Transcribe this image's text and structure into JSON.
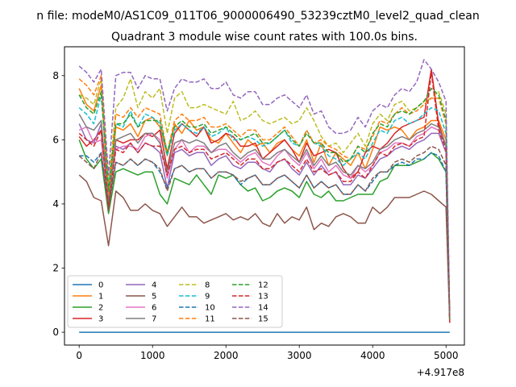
{
  "chart_data": {
    "type": "line",
    "suptitle": "n file: modeM0/AS1C09_011T06_9000006490_53239cztM0_level2_quad_clean",
    "title": "Quadrant 3 module wise count rates with 100.0s bins.",
    "xlabel": "",
    "ylabel": "",
    "x_offset_label": "+4.917e8",
    "xlim": [
      -200,
      5250
    ],
    "ylim": [
      -0.4,
      8.9
    ],
    "xticks": [
      0,
      1000,
      2000,
      3000,
      4000,
      5000
    ],
    "yticks": [
      0,
      2,
      4,
      6,
      8
    ],
    "legend_position": "lower-left",
    "legend_columns": 4,
    "x": [
      0,
      100,
      200,
      300,
      400,
      500,
      600,
      700,
      800,
      900,
      1000,
      1100,
      1200,
      1300,
      1400,
      1500,
      1600,
      1700,
      1800,
      1900,
      2000,
      2100,
      2200,
      2300,
      2400,
      2500,
      2600,
      2700,
      2800,
      2900,
      3000,
      3100,
      3200,
      3300,
      3400,
      3500,
      3600,
      3700,
      3800,
      3900,
      4000,
      4100,
      4200,
      4300,
      4400,
      4500,
      4600,
      4700,
      4800,
      4900,
      5000,
      5050
    ],
    "series": [
      {
        "name": "0",
        "style": "solid",
        "color": "#1f77b4",
        "values": [
          0,
          0,
          0,
          0,
          0,
          0,
          0,
          0,
          0,
          0,
          0,
          0,
          0,
          0,
          0,
          0,
          0,
          0,
          0,
          0,
          0,
          0,
          0,
          0,
          0,
          0,
          0,
          0,
          0,
          0,
          0,
          0,
          0,
          0,
          0,
          0,
          0,
          0,
          0,
          0,
          0,
          0,
          0,
          0,
          0,
          0,
          0,
          0,
          0,
          0,
          0,
          0
        ]
      },
      {
        "name": "1",
        "style": "solid",
        "color": "#ff7f0e",
        "values": [
          7.6,
          7.1,
          6.9,
          7.7,
          4.0,
          6.4,
          6.3,
          6.5,
          6.1,
          6.6,
          6.7,
          6.4,
          5.5,
          6.5,
          6.2,
          6.6,
          6.3,
          6.4,
          6.0,
          5.9,
          6.2,
          5.9,
          5.6,
          6.0,
          5.8,
          5.9,
          5.6,
          5.9,
          6.0,
          5.7,
          5.5,
          6.0,
          5.3,
          5.9,
          5.2,
          5.6,
          5.4,
          5.2,
          5.6,
          5.1,
          5.7,
          6.4,
          6.3,
          6.4,
          6.3,
          6.0,
          6.3,
          6.4,
          6.6,
          6.6,
          6.0,
          0.4
        ]
      },
      {
        "name": "2",
        "style": "solid",
        "color": "#2ca02c",
        "values": [
          6.0,
          5.4,
          5.1,
          5.4,
          3.7,
          5.0,
          5.1,
          5.0,
          4.9,
          5.0,
          5.0,
          4.3,
          4.0,
          4.8,
          4.7,
          4.6,
          4.9,
          4.6,
          4.3,
          4.9,
          4.8,
          4.9,
          4.6,
          4.4,
          4.5,
          4.1,
          4.2,
          4.4,
          4.5,
          4.4,
          4.2,
          4.7,
          4.3,
          4.2,
          4.4,
          4.1,
          4.1,
          4.2,
          4.3,
          4.3,
          4.3,
          4.7,
          4.8,
          5.2,
          5.2,
          5.2,
          5.3,
          5.4,
          5.6,
          5.4,
          5.0,
          0.4
        ]
      },
      {
        "name": "3",
        "style": "solid",
        "color": "#d62728",
        "values": [
          6.1,
          5.8,
          6.0,
          6.3,
          3.8,
          6.0,
          5.9,
          6.0,
          6.0,
          6.2,
          6.1,
          6.3,
          5.1,
          6.2,
          6.5,
          6.3,
          6.1,
          6.4,
          5.9,
          6.0,
          6.2,
          6.1,
          5.8,
          5.8,
          5.9,
          5.4,
          5.6,
          5.8,
          6.0,
          5.7,
          5.3,
          5.9,
          5.5,
          5.6,
          5.7,
          5.6,
          5.1,
          4.8,
          5.0,
          5.6,
          5.8,
          5.7,
          5.9,
          6.2,
          6.4,
          6.5,
          6.6,
          6.7,
          8.2,
          6.5,
          5.8,
          0.3
        ]
      },
      {
        "name": "4",
        "style": "solid",
        "color": "#9467bd",
        "values": [
          6.5,
          6.0,
          5.9,
          6.5,
          4.2,
          5.8,
          5.7,
          5.9,
          5.6,
          5.9,
          5.8,
          5.6,
          4.5,
          5.6,
          5.7,
          5.5,
          5.6,
          5.6,
          5.2,
          5.4,
          5.5,
          5.2,
          5.1,
          5.3,
          5.3,
          5.1,
          5.0,
          5.3,
          5.4,
          5.1,
          4.9,
          5.3,
          4.9,
          5.2,
          4.9,
          5.0,
          4.6,
          4.6,
          4.9,
          4.8,
          5.1,
          5.4,
          5.5,
          5.7,
          5.8,
          5.7,
          5.9,
          6.0,
          6.2,
          6.2,
          5.6,
          0.4
        ]
      },
      {
        "name": "5",
        "style": "solid",
        "color": "#8c564b",
        "values": [
          4.9,
          4.7,
          4.2,
          4.1,
          2.7,
          4.4,
          4.2,
          3.8,
          3.8,
          4.0,
          3.8,
          3.7,
          3.3,
          3.6,
          3.9,
          3.6,
          3.6,
          3.4,
          3.5,
          3.6,
          3.7,
          3.5,
          3.6,
          3.5,
          3.7,
          3.4,
          3.3,
          3.7,
          3.4,
          3.6,
          3.5,
          3.9,
          3.2,
          3.4,
          3.3,
          3.6,
          3.7,
          3.6,
          3.4,
          3.4,
          3.9,
          3.7,
          3.9,
          4.2,
          4.2,
          4.2,
          4.3,
          4.4,
          4.3,
          4.1,
          3.9,
          0.3
        ]
      },
      {
        "name": "6",
        "style": "solid",
        "color": "#e377c2",
        "values": [
          6.3,
          6.4,
          5.9,
          6.0,
          4.1,
          5.7,
          5.8,
          5.8,
          5.7,
          6.1,
          6.2,
          6.0,
          4.8,
          5.7,
          6.0,
          5.6,
          5.8,
          5.8,
          5.6,
          5.7,
          5.7,
          5.5,
          5.3,
          5.5,
          5.6,
          5.3,
          5.2,
          5.5,
          5.7,
          5.4,
          5.2,
          5.6,
          5.1,
          5.4,
          5.0,
          5.2,
          4.9,
          4.8,
          5.2,
          5.0,
          5.2,
          5.6,
          5.7,
          5.9,
          5.9,
          5.8,
          6.1,
          6.2,
          6.4,
          6.3,
          5.8,
          0.3
        ]
      },
      {
        "name": "7",
        "style": "solid",
        "color": "#7f7f7f",
        "values": [
          6.8,
          6.4,
          6.3,
          6.6,
          4.1,
          6.0,
          6.1,
          6.2,
          5.9,
          6.2,
          6.2,
          5.9,
          5.0,
          5.9,
          6.0,
          5.9,
          6.0,
          5.9,
          5.6,
          5.8,
          5.9,
          5.6,
          5.4,
          5.6,
          5.7,
          5.4,
          5.4,
          5.6,
          5.7,
          5.5,
          5.3,
          5.7,
          5.2,
          5.5,
          5.2,
          5.3,
          5.0,
          4.9,
          5.2,
          5.1,
          5.3,
          5.7,
          5.8,
          6.0,
          6.1,
          6.0,
          6.2,
          6.3,
          6.5,
          6.4,
          5.8,
          0.4
        ]
      },
      {
        "name": "8",
        "style": "dashed",
        "color": "#bcbd22",
        "values": [
          7.4,
          7.3,
          7.1,
          7.9,
          4.6,
          7.0,
          7.3,
          7.9,
          7.0,
          7.5,
          7.3,
          7.6,
          6.2,
          7.3,
          7.5,
          7.0,
          7.0,
          7.1,
          7.0,
          6.9,
          6.8,
          7.2,
          6.6,
          6.7,
          6.9,
          6.6,
          6.5,
          6.6,
          6.7,
          6.5,
          6.6,
          7.0,
          6.6,
          6.1,
          5.8,
          5.9,
          5.6,
          5.9,
          6.2,
          5.8,
          6.5,
          6.8,
          6.6,
          7.1,
          7.2,
          6.9,
          7.0,
          7.2,
          7.3,
          7.5,
          6.8,
          0.4
        ]
      },
      {
        "name": "9",
        "style": "dashed",
        "color": "#17becf",
        "values": [
          7.0,
          6.8,
          6.5,
          7.4,
          4.5,
          6.5,
          6.4,
          6.9,
          6.4,
          6.8,
          6.7,
          6.5,
          5.5,
          6.3,
          6.5,
          6.3,
          6.2,
          6.4,
          6.1,
          6.2,
          6.4,
          6.0,
          6.0,
          6.1,
          6.0,
          5.8,
          5.9,
          6.1,
          6.3,
          5.9,
          5.8,
          6.3,
          5.9,
          5.8,
          5.5,
          5.4,
          5.2,
          5.4,
          5.6,
          5.4,
          5.9,
          6.3,
          6.2,
          6.6,
          6.7,
          6.5,
          6.6,
          6.8,
          7.0,
          6.9,
          6.2,
          0.4
        ]
      },
      {
        "name": "10",
        "style": "dashed",
        "color": "#1f77b4",
        "values": [
          5.5,
          5.5,
          5.3,
          5.6,
          3.9,
          5.3,
          5.2,
          5.4,
          5.2,
          5.4,
          5.3,
          5.0,
          4.5,
          5.1,
          5.2,
          5.0,
          5.1,
          5.1,
          4.8,
          5.0,
          5.0,
          4.9,
          4.6,
          4.8,
          4.9,
          4.6,
          4.6,
          4.8,
          4.9,
          4.7,
          4.5,
          4.9,
          4.5,
          4.7,
          4.5,
          4.6,
          4.3,
          4.3,
          4.6,
          4.4,
          4.7,
          5.0,
          5.0,
          5.2,
          5.3,
          5.2,
          5.4,
          5.4,
          5.6,
          5.5,
          5.0,
          0.4
        ]
      },
      {
        "name": "11",
        "style": "dashed",
        "color": "#ff7f0e",
        "values": [
          7.9,
          7.7,
          7.4,
          8.0,
          4.3,
          6.8,
          6.7,
          7.0,
          6.7,
          7.0,
          6.9,
          6.8,
          5.6,
          6.6,
          6.8,
          6.6,
          6.6,
          6.7,
          6.4,
          6.4,
          6.5,
          6.3,
          6.1,
          6.3,
          6.3,
          6.0,
          6.0,
          6.2,
          6.4,
          6.1,
          5.8,
          6.3,
          5.9,
          6.0,
          5.8,
          5.7,
          5.5,
          5.4,
          5.8,
          5.7,
          6.1,
          6.6,
          6.5,
          6.8,
          7.0,
          6.8,
          6.9,
          7.1,
          7.3,
          7.3,
          6.5,
          0.4
        ]
      },
      {
        "name": "12",
        "style": "dashed",
        "color": "#2ca02c",
        "values": [
          7.4,
          7.0,
          6.8,
          7.5,
          4.4,
          6.5,
          6.5,
          6.8,
          6.4,
          6.6,
          6.6,
          6.6,
          5.6,
          6.4,
          6.6,
          6.4,
          6.4,
          6.5,
          6.2,
          6.3,
          6.4,
          6.2,
          6.0,
          6.1,
          6.2,
          5.9,
          5.9,
          6.1,
          6.3,
          6.0,
          5.8,
          6.2,
          5.9,
          5.9,
          5.6,
          5.6,
          5.3,
          5.4,
          5.8,
          5.6,
          6.2,
          6.5,
          6.4,
          6.8,
          6.9,
          6.8,
          7.0,
          7.2,
          7.6,
          7.4,
          6.6,
          0.4
        ]
      },
      {
        "name": "13",
        "style": "dashed",
        "color": "#d62728",
        "values": [
          6.2,
          6.0,
          5.8,
          6.3,
          3.9,
          5.7,
          5.6,
          5.9,
          5.6,
          5.9,
          5.8,
          5.8,
          4.9,
          5.7,
          5.8,
          5.6,
          5.7,
          5.7,
          5.4,
          5.5,
          5.6,
          5.4,
          5.2,
          5.4,
          5.4,
          5.1,
          5.1,
          5.3,
          5.4,
          5.2,
          5.0,
          5.4,
          5.0,
          5.1,
          4.9,
          5.0,
          4.7,
          4.7,
          5.0,
          4.8,
          5.2,
          5.6,
          5.5,
          5.8,
          5.9,
          5.8,
          6.0,
          6.1,
          8.1,
          6.3,
          5.7,
          0.3
        ]
      },
      {
        "name": "14",
        "style": "dashed",
        "color": "#9467bd",
        "values": [
          8.3,
          8.1,
          7.8,
          8.2,
          4.9,
          8.0,
          8.1,
          8.1,
          7.6,
          8.0,
          7.9,
          7.9,
          6.9,
          7.6,
          7.9,
          7.8,
          7.8,
          7.9,
          7.6,
          7.6,
          7.8,
          7.4,
          7.3,
          7.5,
          7.5,
          7.1,
          7.1,
          7.3,
          7.4,
          7.2,
          7.0,
          7.4,
          6.8,
          6.9,
          6.4,
          6.2,
          6.2,
          6.3,
          6.7,
          6.4,
          6.9,
          7.1,
          7.0,
          7.4,
          7.6,
          7.5,
          7.8,
          8.5,
          8.2,
          7.8,
          7.2,
          0.5
        ]
      },
      {
        "name": "15",
        "style": "dashed",
        "color": "#8c564b",
        "values": [
          5.5,
          5.3,
          5.1,
          5.6,
          3.8,
          5.3,
          5.2,
          5.4,
          5.2,
          5.4,
          5.3,
          5.1,
          4.4,
          5.1,
          5.2,
          5.0,
          5.1,
          5.1,
          4.8,
          5.0,
          5.0,
          4.9,
          4.7,
          4.8,
          4.9,
          4.6,
          4.6,
          4.8,
          4.9,
          4.7,
          4.5,
          4.9,
          4.5,
          4.7,
          4.5,
          4.6,
          4.3,
          4.3,
          4.6,
          4.4,
          4.8,
          5.0,
          5.0,
          5.3,
          5.4,
          5.3,
          5.5,
          5.6,
          5.8,
          5.7,
          5.2,
          0.4
        ]
      }
    ]
  }
}
